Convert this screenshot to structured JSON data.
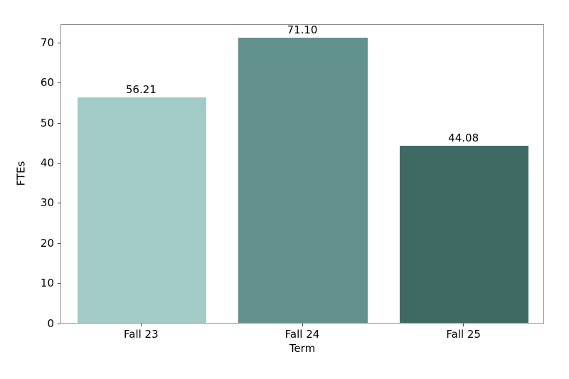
{
  "chart_data": {
    "type": "bar",
    "title": "",
    "xlabel": "Term",
    "ylabel": "FTEs",
    "categories": [
      "Fall 23",
      "Fall 24",
      "Fall 25"
    ],
    "values": [
      56.21,
      71.1,
      44.08
    ],
    "bar_labels": [
      "56.21",
      "71.10",
      "44.08"
    ],
    "bar_colors": [
      "#a2cbc7",
      "#62918d",
      "#3f6a64"
    ],
    "yticks": [
      0,
      10,
      20,
      30,
      40,
      50,
      60,
      70
    ],
    "ylim": [
      0,
      74.66
    ],
    "grid": false,
    "legend": "none",
    "bar_width_fraction": 0.8
  },
  "style": {
    "spine_color": "#8c8c8c",
    "tick_color": "#3c3c3c",
    "text_color": "#000000",
    "background_color": "#ffffff"
  }
}
